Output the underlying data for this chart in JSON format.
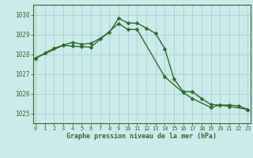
{
  "line1_x": [
    0,
    1,
    2,
    3,
    4,
    5,
    6,
    7,
    8,
    9,
    10,
    11,
    12,
    13,
    14,
    15,
    16,
    17,
    18,
    19,
    20,
    21,
    22,
    23
  ],
  "line1_y": [
    1027.8,
    1028.05,
    1028.3,
    1028.45,
    1028.6,
    1028.5,
    1028.55,
    1028.8,
    1029.1,
    1029.82,
    1029.57,
    1029.57,
    1029.32,
    1029.05,
    1028.28,
    1026.75,
    1026.1,
    1026.1,
    1025.75,
    1025.45,
    1025.42,
    1025.42,
    1025.38,
    1025.2
  ],
  "line2_x": [
    0,
    3,
    4,
    5,
    6,
    9,
    10,
    11,
    14,
    16,
    17,
    19,
    20,
    21,
    23
  ],
  "line2_y": [
    1027.8,
    1028.45,
    1028.4,
    1028.38,
    1028.35,
    1029.55,
    1029.25,
    1029.25,
    1026.85,
    1026.05,
    1025.75,
    1025.3,
    1025.42,
    1025.35,
    1025.2
  ],
  "line_color": "#2d6a2d",
  "bg_color": "#cceaea",
  "grid_color": "#99cccc",
  "grid_color2": "#b3d9d9",
  "ylabel_values": [
    1025,
    1026,
    1027,
    1028,
    1029,
    1030
  ],
  "xlabel_values": [
    0,
    1,
    2,
    3,
    4,
    5,
    6,
    7,
    8,
    9,
    10,
    11,
    12,
    13,
    14,
    15,
    16,
    17,
    18,
    19,
    20,
    21,
    22,
    23
  ],
  "ylim": [
    1024.5,
    1030.5
  ],
  "xlim": [
    -0.3,
    23.3
  ],
  "xlabel": "Graphe pression niveau de la mer (hPa)",
  "marker": "D",
  "markersize": 2.5,
  "linewidth": 1.0
}
